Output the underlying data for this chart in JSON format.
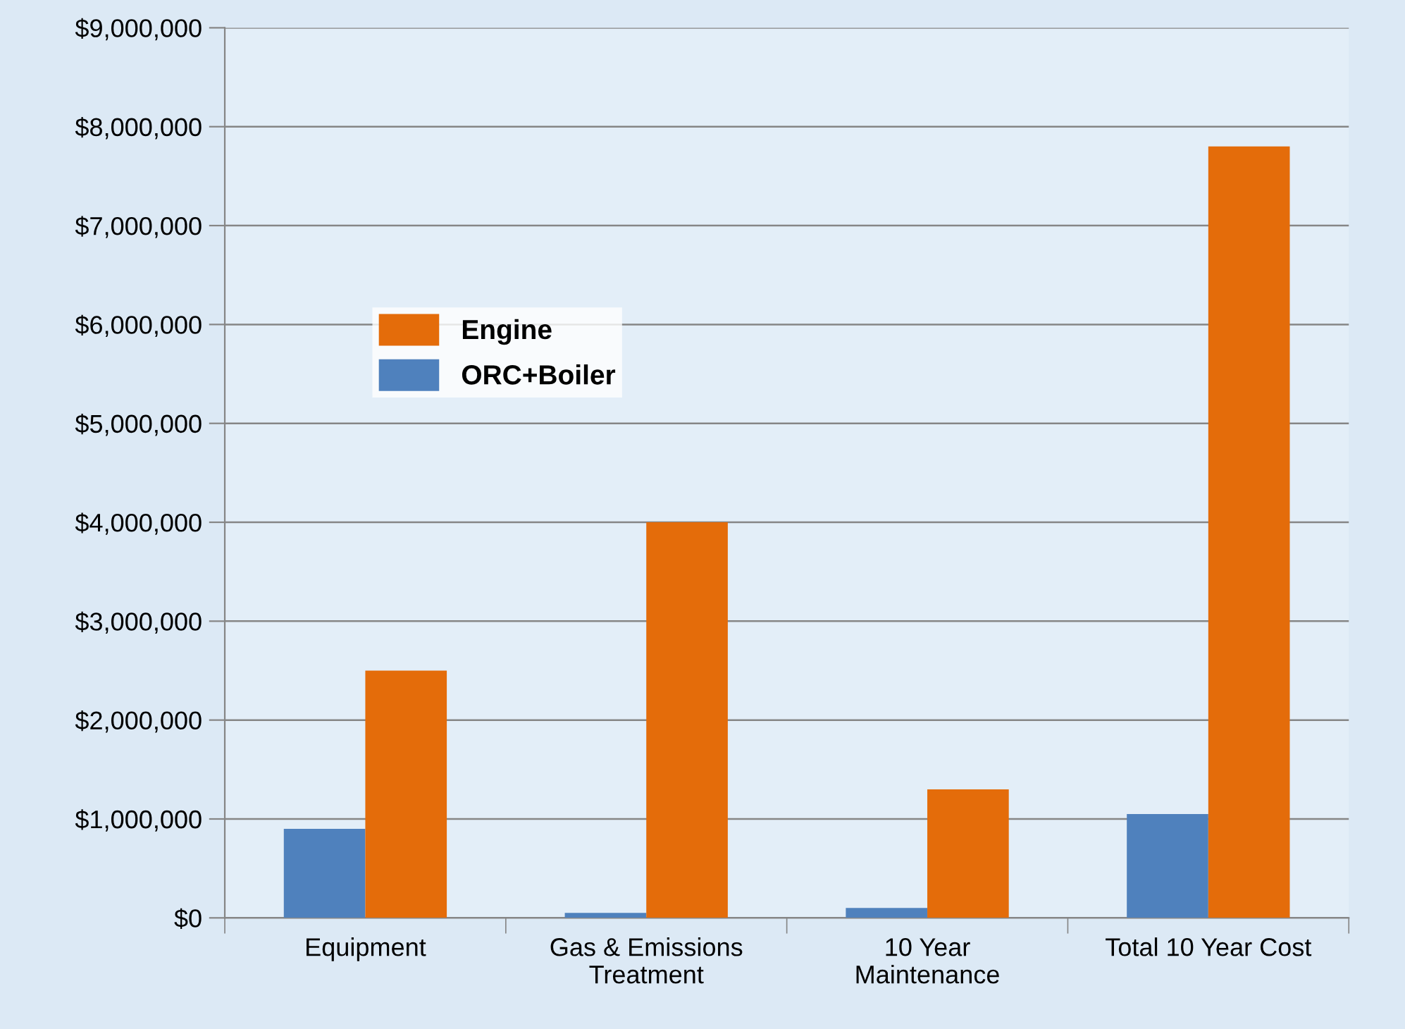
{
  "chart_data": {
    "type": "bar",
    "categories": [
      "Equipment",
      "Gas & Emissions\nTreatment",
      "10 Year\nMaintenance",
      "Total 10 Year Cost"
    ],
    "series": [
      {
        "name": "ORC+Boiler",
        "color": "#4f81bd",
        "values": [
          900000,
          50000,
          100000,
          1050000
        ]
      },
      {
        "name": "Engine",
        "color": "#e46c0a",
        "values": [
          2500000,
          4000000,
          1300000,
          7800000
        ]
      }
    ],
    "ylim": [
      0,
      9000000
    ],
    "yticks": [
      {
        "value": 0,
        "label": "$0"
      },
      {
        "value": 1000000,
        "label": "$1,000,000"
      },
      {
        "value": 2000000,
        "label": "$2,000,000"
      },
      {
        "value": 3000000,
        "label": "$3,000,000"
      },
      {
        "value": 4000000,
        "label": "$4,000,000"
      },
      {
        "value": 5000000,
        "label": "$5,000,000"
      },
      {
        "value": 6000000,
        "label": "$6,000,000"
      },
      {
        "value": 7000000,
        "label": "$7,000,000"
      },
      {
        "value": 8000000,
        "label": "$8,000,000"
      },
      {
        "value": 9000000,
        "label": "$9,000,000"
      }
    ],
    "grid": "y",
    "legend": "upper left"
  }
}
